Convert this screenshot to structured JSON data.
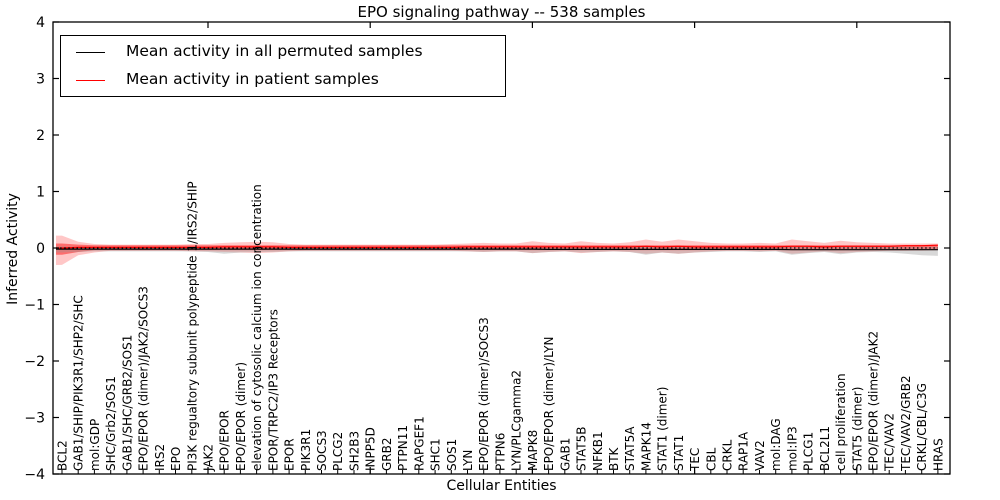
{
  "figure": {
    "title": "EPO signaling pathway -- 538 samples"
  },
  "axes": {
    "x_label": "Cellular Entities",
    "y_label": "Inferred Activity",
    "y_tick_labels": [
      "4",
      "3",
      "2",
      "1",
      "0",
      "−1",
      "−2",
      "−3",
      "−4"
    ],
    "y_tick_values": [
      4,
      3,
      2,
      1,
      0,
      -1,
      -2,
      -3,
      -4
    ]
  },
  "legend": {
    "items": [
      {
        "label": "Mean activity in all permuted samples",
        "color": "#000000"
      },
      {
        "label": "Mean activity in patient samples",
        "color": "#ff0000"
      }
    ]
  },
  "chart_data": {
    "type": "line",
    "title": "EPO signaling pathway -- 538 samples",
    "xlabel": "Cellular Entities",
    "ylabel": "Inferred Activity",
    "ylim": [
      -4,
      4
    ],
    "grid": false,
    "legend_position": "upper left",
    "zero_line": {
      "style": "dotted",
      "color": "#000000",
      "y": 0
    },
    "categories": [
      "BCL2",
      "GAB1/SHIP/PIK3R1/SHP2/SHC",
      "mol:GDP",
      "SHC/Grb2/SOS1",
      "GAB1/SHC/GRB2/SOS1",
      "EPO/EPOR (dimer)/JAK2/SOCS3",
      "IRS2",
      "EPO",
      "PI3K regualtory subunit polypeptide 1/IRS2/SHIP",
      "JAK2",
      "EPO/EPOR",
      "EPO/EPOR (dimer)",
      "elevation of cytosolic calcium ion concentration",
      "EPOR/TRPC2/IP3 Receptors",
      "EPOR",
      "PIK3R1",
      "SOCS3",
      "PLCG2",
      "SH2B3",
      "INPP5D",
      "GRB2",
      "PTPN11",
      "RAPGEF1",
      "SHC1",
      "SOS1",
      "LYN",
      "EPO/EPOR (dimer)/SOCS3",
      "PTPN6",
      "LYN/PLCgamma2",
      "MAPK8",
      "EPO/EPOR (dimer)/LYN",
      "GAB1",
      "STAT5B",
      "NFKB1",
      "BTK",
      "STAT5A",
      "MAPK14",
      "STAT1 (dimer)",
      "STAT1",
      "TEC",
      "CBL",
      "CRKL",
      "RAP1A",
      "VAV2",
      "mol:DAG",
      "mol:IP3",
      "PLCG1",
      "BCL2L1",
      "cell proliferation",
      "STAT5 (dimer)",
      "EPO/EPOR (dimer)/JAK2",
      "TEC/VAV2",
      "TEC/VAV2/GRB2",
      "CRKL/CBL/C3G",
      "HRAS"
    ],
    "series": [
      {
        "name": "Mean activity in all permuted samples",
        "color": "#000000",
        "values": [
          -0.02,
          -0.02,
          -0.02,
          -0.02,
          -0.02,
          -0.02,
          -0.02,
          -0.02,
          -0.02,
          -0.02,
          -0.02,
          -0.02,
          -0.02,
          -0.02,
          -0.02,
          -0.02,
          -0.02,
          -0.02,
          -0.02,
          -0.02,
          -0.02,
          -0.02,
          -0.02,
          -0.02,
          -0.02,
          -0.02,
          -0.02,
          -0.02,
          -0.02,
          -0.02,
          -0.025,
          -0.025,
          -0.025,
          -0.025,
          -0.025,
          -0.025,
          -0.025,
          -0.025,
          -0.025,
          -0.025,
          -0.025,
          -0.025,
          -0.025,
          -0.025,
          -0.025,
          -0.03,
          -0.03,
          -0.03,
          -0.03,
          -0.03,
          -0.03,
          -0.03,
          -0.03,
          -0.03,
          -0.03
        ]
      },
      {
        "name": "Mean activity in patient samples",
        "color": "#ff0000",
        "values": [
          0.0,
          0.01,
          0.01,
          0.01,
          0.01,
          0.01,
          0.01,
          0.01,
          0.01,
          0.01,
          0.02,
          0.02,
          0.02,
          0.02,
          0.01,
          0.01,
          0.01,
          0.01,
          0.01,
          0.01,
          0.01,
          0.01,
          0.01,
          0.01,
          0.01,
          0.02,
          0.02,
          0.02,
          0.02,
          0.02,
          0.02,
          0.02,
          0.02,
          0.02,
          0.02,
          0.02,
          0.03,
          0.02,
          0.03,
          0.02,
          0.02,
          0.02,
          0.02,
          0.02,
          0.02,
          0.03,
          0.03,
          0.02,
          0.03,
          0.03,
          0.03,
          0.03,
          0.04,
          0.04,
          0.05
        ]
      }
    ],
    "bands": [
      {
        "name": "patient-samples-outer-spread",
        "color": "#ff0000",
        "opacity": 0.22,
        "upper": [
          0.22,
          0.11,
          0.07,
          0.06,
          0.06,
          0.06,
          0.06,
          0.06,
          0.07,
          0.07,
          0.09,
          0.1,
          0.11,
          0.1,
          0.07,
          0.06,
          0.06,
          0.06,
          0.06,
          0.06,
          0.06,
          0.06,
          0.06,
          0.06,
          0.07,
          0.08,
          0.09,
          0.08,
          0.08,
          0.12,
          0.09,
          0.08,
          0.12,
          0.09,
          0.08,
          0.1,
          0.15,
          0.11,
          0.15,
          0.12,
          0.09,
          0.08,
          0.08,
          0.09,
          0.08,
          0.15,
          0.12,
          0.09,
          0.13,
          0.1,
          0.09,
          0.08,
          0.08,
          0.08,
          0.08
        ],
        "lower": [
          -0.3,
          -0.13,
          -0.08,
          -0.05,
          -0.05,
          -0.05,
          -0.05,
          -0.05,
          -0.06,
          -0.06,
          -0.07,
          -0.08,
          -0.09,
          -0.08,
          -0.06,
          -0.05,
          -0.05,
          -0.05,
          -0.05,
          -0.05,
          -0.05,
          -0.05,
          -0.05,
          -0.05,
          -0.05,
          -0.06,
          -0.07,
          -0.06,
          -0.06,
          -0.09,
          -0.07,
          -0.06,
          -0.09,
          -0.07,
          -0.06,
          -0.07,
          -0.1,
          -0.08,
          -0.1,
          -0.08,
          -0.06,
          -0.05,
          -0.05,
          -0.06,
          -0.05,
          -0.1,
          -0.08,
          -0.06,
          -0.09,
          -0.07,
          -0.06,
          -0.05,
          -0.05,
          -0.05,
          -0.04
        ]
      },
      {
        "name": "patient-samples-inner-spread",
        "color": "#ff0000",
        "opacity": 0.45,
        "upper": [
          0.08,
          0.06,
          0.05,
          0.05,
          0.05,
          0.05,
          0.05,
          0.05,
          0.05,
          0.05,
          0.05,
          0.05,
          0.05,
          0.05,
          0.05,
          0.05,
          0.05,
          0.05,
          0.05,
          0.05,
          0.05,
          0.05,
          0.05,
          0.05,
          0.05,
          0.05,
          0.05,
          0.05,
          0.05,
          0.05,
          0.05,
          0.05,
          0.05,
          0.05,
          0.05,
          0.05,
          0.05,
          0.05,
          0.05,
          0.05,
          0.05,
          0.05,
          0.05,
          0.05,
          0.05,
          0.05,
          0.05,
          0.05,
          0.05,
          0.05,
          0.05,
          0.05,
          0.05,
          0.05,
          0.06
        ],
        "lower": [
          -0.12,
          -0.07,
          -0.04,
          -0.04,
          -0.04,
          -0.04,
          -0.04,
          -0.04,
          -0.04,
          -0.04,
          -0.04,
          -0.04,
          -0.04,
          -0.04,
          -0.04,
          -0.04,
          -0.04,
          -0.04,
          -0.04,
          -0.04,
          -0.04,
          -0.04,
          -0.04,
          -0.04,
          -0.04,
          -0.04,
          -0.04,
          -0.04,
          -0.04,
          -0.04,
          -0.04,
          -0.04,
          -0.04,
          -0.04,
          -0.04,
          -0.04,
          -0.04,
          -0.04,
          -0.04,
          -0.04,
          -0.04,
          -0.04,
          -0.04,
          -0.04,
          -0.04,
          -0.04,
          -0.04,
          -0.04,
          -0.04,
          -0.04,
          -0.04,
          -0.04,
          -0.04,
          -0.03,
          -0.03
        ]
      },
      {
        "name": "permuted-samples-spread",
        "color": "#999999",
        "opacity": 0.38,
        "upper": [
          0.03,
          0.02,
          0.02,
          0.02,
          0.02,
          0.02,
          0.02,
          0.02,
          0.02,
          0.02,
          0.02,
          0.02,
          0.02,
          0.02,
          0.02,
          0.02,
          0.02,
          0.02,
          0.02,
          0.02,
          0.02,
          0.02,
          0.02,
          0.02,
          0.02,
          0.02,
          0.02,
          0.02,
          0.02,
          0.02,
          0.02,
          0.02,
          0.02,
          0.02,
          0.02,
          0.02,
          0.02,
          0.02,
          0.02,
          0.02,
          0.02,
          0.02,
          0.02,
          0.02,
          0.02,
          0.02,
          0.02,
          0.02,
          0.02,
          0.02,
          0.02,
          0.02,
          0.02,
          0.02,
          0.02
        ],
        "lower": [
          -0.08,
          -0.07,
          -0.06,
          -0.06,
          -0.06,
          -0.06,
          -0.06,
          -0.06,
          -0.06,
          -0.07,
          -0.1,
          -0.08,
          -0.07,
          -0.07,
          -0.06,
          -0.06,
          -0.06,
          -0.06,
          -0.06,
          -0.06,
          -0.06,
          -0.06,
          -0.06,
          -0.06,
          -0.06,
          -0.06,
          -0.07,
          -0.06,
          -0.06,
          -0.09,
          -0.07,
          -0.06,
          -0.08,
          -0.07,
          -0.06,
          -0.07,
          -0.12,
          -0.08,
          -0.1,
          -0.08,
          -0.07,
          -0.06,
          -0.06,
          -0.07,
          -0.06,
          -0.12,
          -0.09,
          -0.07,
          -0.11,
          -0.08,
          -0.07,
          -0.08,
          -0.1,
          -0.13,
          -0.14
        ]
      }
    ]
  }
}
